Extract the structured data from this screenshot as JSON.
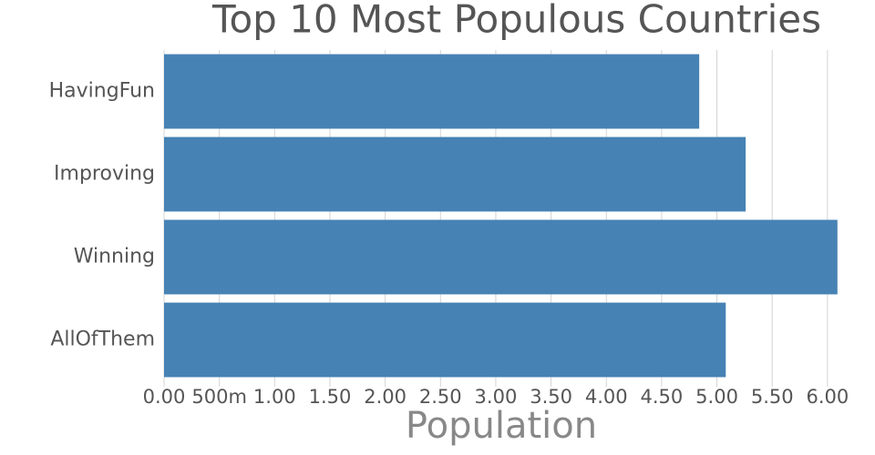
{
  "chart_data": {
    "type": "hbar",
    "title": "Top 10 Most Populous Countries",
    "x_label": "Population",
    "categories": [
      "HavingFun",
      "Improving",
      "Winning",
      "AllOfThem"
    ],
    "values": [
      4.84,
      5.26,
      6.09,
      5.08
    ],
    "color": "#4682b4",
    "xlim": [
      0,
      6.1
    ],
    "xticks": [
      {
        "value": 0,
        "label": "0.00"
      },
      {
        "value": 0.5,
        "label": "500m"
      },
      {
        "value": 1,
        "label": "1.00"
      },
      {
        "value": 1.5,
        "label": "1.50"
      },
      {
        "value": 2,
        "label": "2.00"
      },
      {
        "value": 2.5,
        "label": "2.50"
      },
      {
        "value": 3,
        "label": "3.00"
      },
      {
        "value": 3.5,
        "label": "3.50"
      },
      {
        "value": 4,
        "label": "4.00"
      },
      {
        "value": 4.5,
        "label": "4.50"
      },
      {
        "value": 5,
        "label": "5.00"
      },
      {
        "value": 5.5,
        "label": "5.50"
      },
      {
        "value": 6,
        "label": "6.00"
      }
    ],
    "grid": true
  }
}
